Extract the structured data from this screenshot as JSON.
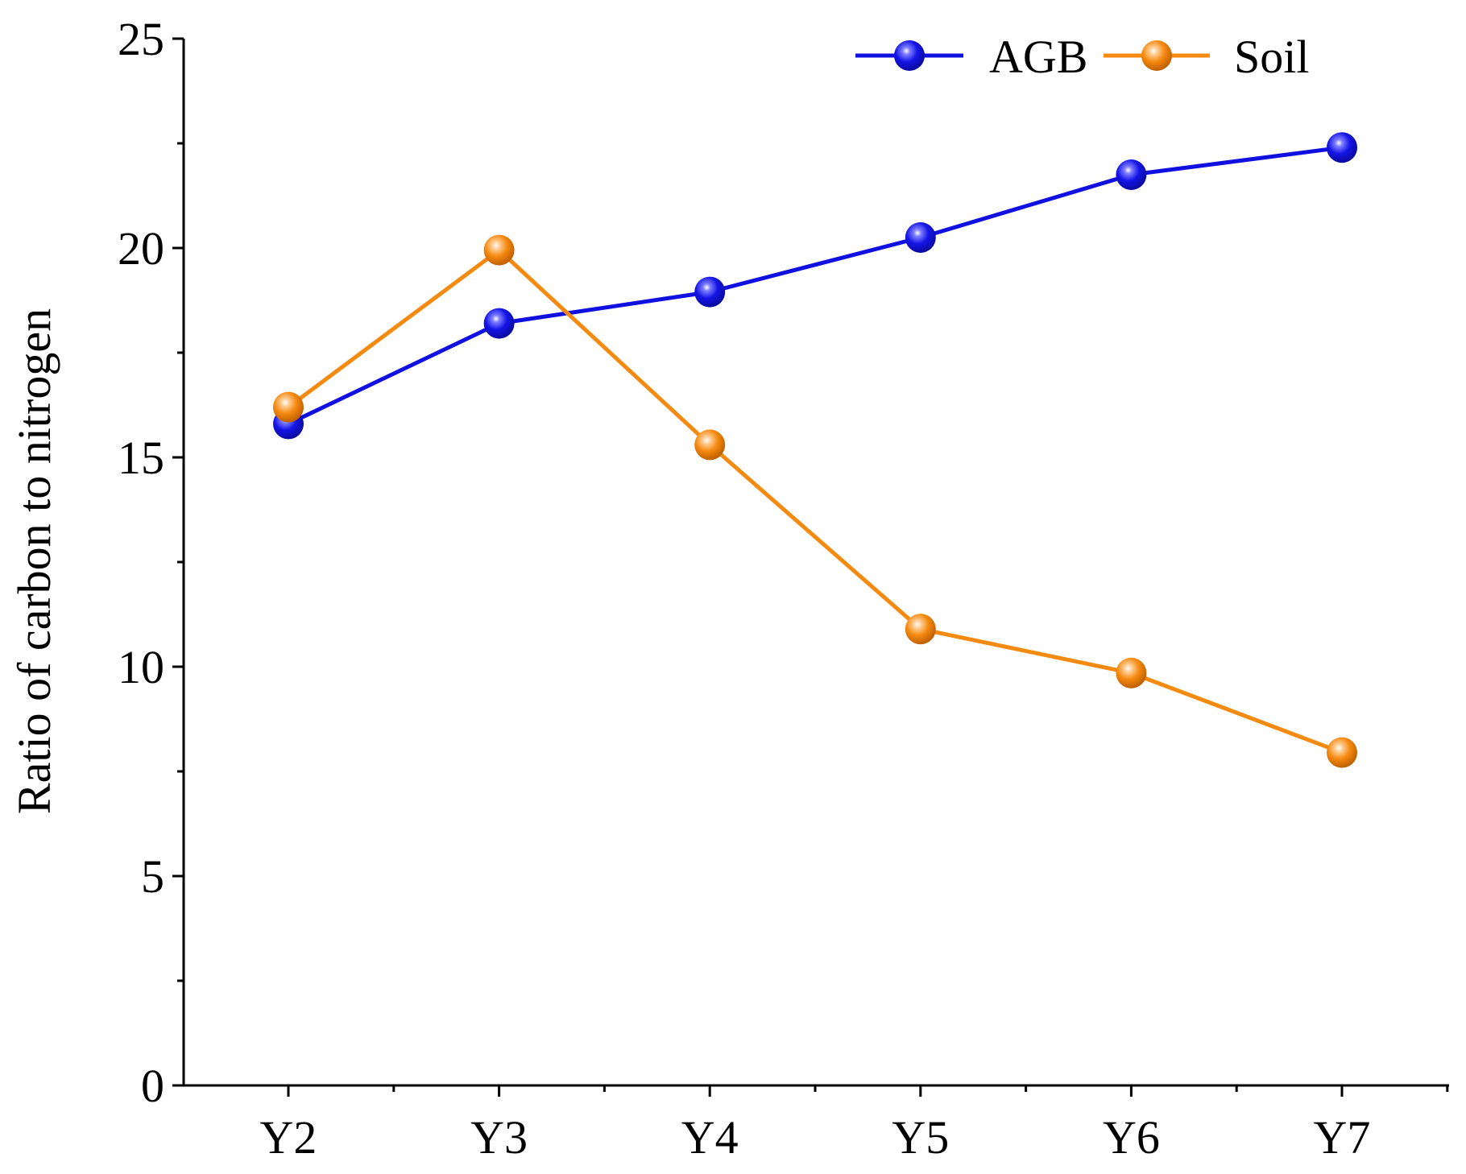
{
  "chart_data": {
    "type": "line",
    "title": "",
    "xlabel": "",
    "ylabel": "Ratio of carbon to nitrogen",
    "categories": [
      "Y2",
      "Y3",
      "Y4",
      "Y5",
      "Y6",
      "Y7"
    ],
    "ylim": [
      0,
      25
    ],
    "yticks": [
      0,
      5,
      10,
      15,
      20,
      25
    ],
    "grid": false,
    "legend_position": "top-right",
    "series": [
      {
        "name": "AGB",
        "color": "#1010e0",
        "values": [
          15.8,
          18.2,
          18.95,
          20.25,
          21.75,
          22.4
        ]
      },
      {
        "name": "Soil",
        "color": "#f58a10",
        "values": [
          16.2,
          19.95,
          15.3,
          10.9,
          9.85,
          7.95
        ]
      }
    ]
  }
}
